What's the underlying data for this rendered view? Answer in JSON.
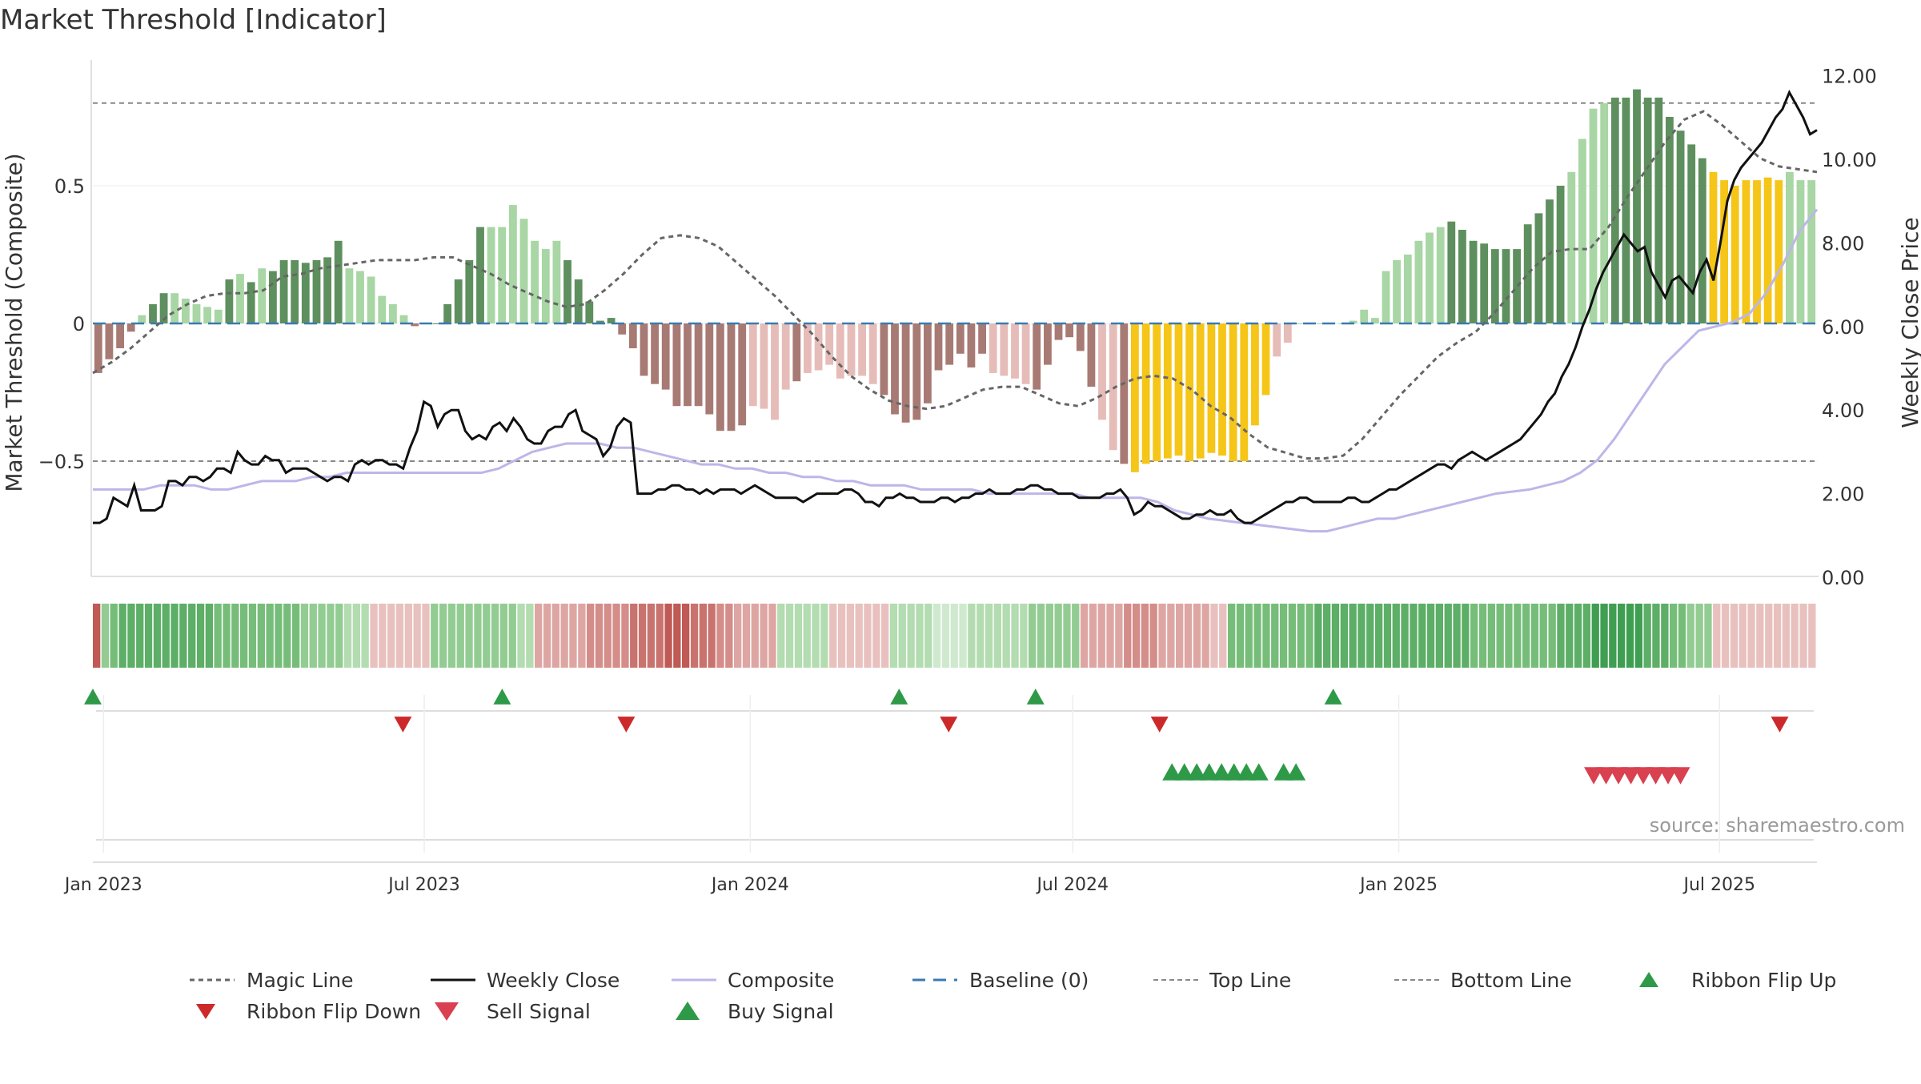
{
  "chart_data": {
    "type": "composite-indicator",
    "title": "Market Threshold [Indicator]",
    "ylabel_left": "Market Threshold (Composite)",
    "ylabel_right": "Weekly Close Price",
    "source": "source: sharemaestro.com",
    "left_ticks": [
      "0.5",
      "0",
      "−0.5"
    ],
    "right_ticks": [
      "12.00",
      "10.00",
      "8.00",
      "6.00",
      "4.00",
      "2.00",
      "0.00"
    ],
    "x_ticks": [
      "Jan 2023",
      "Jul 2023",
      "Jan 2024",
      "Jul 2024",
      "Jan 2025",
      "Jul 2025"
    ],
    "ylim_left": [
      -0.93,
      0.95
    ],
    "ylim_right": [
      0,
      12.4
    ],
    "top_line": 0.8,
    "bottom_line": -0.5,
    "legend": [
      "Magic Line",
      "Weekly Close",
      "Composite",
      "Baseline (0)",
      "Top Line",
      "Bottom Line",
      "Ribbon Flip Up",
      "Ribbon Flip Down",
      "Sell Signal",
      "Buy Signal"
    ],
    "colors": {
      "green_dark": "#5e8f5e",
      "green_light": "#a8d6a4",
      "red_dark": "#a87a74",
      "red_light": "#e6bcb9",
      "yellow": "#f5c518",
      "composite": "#bdb6e8",
      "close": "#111111",
      "magic": "#666666",
      "baseline": "#3a7ab0",
      "buy": "#2e9a48",
      "sell": "#d94050",
      "flip_down": "#cc2a2a"
    },
    "composite_bars": [
      -0.18,
      -0.13,
      -0.09,
      -0.03,
      0.03,
      0.07,
      0.11,
      0.11,
      0.09,
      0.07,
      0.06,
      0.05,
      0.16,
      0.18,
      0.15,
      0.2,
      0.19,
      0.23,
      0.23,
      0.22,
      0.23,
      0.24,
      0.3,
      0.2,
      0.19,
      0.17,
      0.1,
      0.07,
      0.03,
      -0.01,
      0.0,
      0.0,
      0.07,
      0.16,
      0.23,
      0.35,
      0.35,
      0.35,
      0.43,
      0.38,
      0.3,
      0.27,
      0.3,
      0.23,
      0.16,
      0.08,
      0.01,
      0.02,
      -0.04,
      -0.09,
      -0.19,
      -0.22,
      -0.24,
      -0.3,
      -0.3,
      -0.3,
      -0.33,
      -0.39,
      -0.39,
      -0.37,
      -0.3,
      -0.31,
      -0.35,
      -0.24,
      -0.21,
      -0.18,
      -0.17,
      -0.15,
      -0.2,
      -0.19,
      -0.19,
      -0.22,
      -0.26,
      -0.33,
      -0.36,
      -0.35,
      -0.29,
      -0.17,
      -0.15,
      -0.11,
      -0.16,
      -0.11,
      -0.18,
      -0.19,
      -0.2,
      -0.22,
      -0.24,
      -0.15,
      -0.06,
      -0.05,
      -0.1,
      -0.23,
      -0.35,
      -0.46,
      -0.51,
      -0.54,
      -0.51,
      -0.5,
      -0.49,
      -0.48,
      -0.5,
      -0.49,
      -0.47,
      -0.48,
      -0.5,
      -0.5,
      -0.37,
      -0.26,
      -0.12,
      -0.07,
      0.0,
      0.0,
      0.0,
      0.0,
      0.0,
      0.01,
      0.05,
      0.02,
      0.19,
      0.23,
      0.25,
      0.3,
      0.33,
      0.35,
      0.37,
      0.34,
      0.3,
      0.29,
      0.27,
      0.27,
      0.27,
      0.36,
      0.4,
      0.45,
      0.5,
      0.55,
      0.67,
      0.78,
      0.8,
      0.82,
      0.82,
      0.85,
      0.82,
      0.82,
      0.75,
      0.7,
      0.65,
      0.6,
      0.55,
      0.52,
      0.5,
      0.52,
      0.52,
      0.53,
      0.52,
      0.55,
      0.52,
      0.52
    ],
    "bar_kind": "ddddlddllllldldldddddddlllllldldddddllllllldddddddddddddddddlllldlllllllddddddddddllllddddddlldyyyyyyyyyyyyylllllllllllllllldddddddddddlllldddddddddyyyyyyylllllllllddddddd",
    "magic_line": [
      -0.18,
      -0.14,
      -0.09,
      -0.03,
      0.03,
      0.07,
      0.1,
      0.11,
      0.11,
      0.12,
      0.17,
      0.18,
      0.2,
      0.21,
      0.22,
      0.23,
      0.23,
      0.23,
      0.24,
      0.24,
      0.21,
      0.18,
      0.14,
      0.11,
      0.08,
      0.06,
      0.07,
      0.12,
      0.18,
      0.25,
      0.31,
      0.32,
      0.31,
      0.28,
      0.22,
      0.16,
      0.1,
      0.03,
      -0.04,
      -0.12,
      -0.19,
      -0.24,
      -0.28,
      -0.3,
      -0.31,
      -0.3,
      -0.27,
      -0.24,
      -0.23,
      -0.23,
      -0.26,
      -0.29,
      -0.3,
      -0.27,
      -0.23,
      -0.2,
      -0.19,
      -0.2,
      -0.24,
      -0.3,
      -0.34,
      -0.4,
      -0.45,
      -0.47,
      -0.49,
      -0.49,
      -0.48,
      -0.42,
      -0.34,
      -0.26,
      -0.19,
      -0.12,
      -0.07,
      -0.03,
      0.04,
      0.12,
      0.2,
      0.26,
      0.27,
      0.27,
      0.35,
      0.46,
      0.56,
      0.66,
      0.74,
      0.77,
      0.72,
      0.66,
      0.6,
      0.57,
      0.56,
      0.55
    ],
    "weekly_close": [
      1.3,
      1.3,
      1.4,
      1.9,
      1.8,
      1.7,
      2.2,
      1.6,
      1.6,
      1.6,
      1.7,
      2.3,
      2.3,
      2.2,
      2.4,
      2.4,
      2.3,
      2.4,
      2.6,
      2.6,
      2.5,
      3.0,
      2.8,
      2.7,
      2.7,
      2.9,
      2.8,
      2.8,
      2.5,
      2.6,
      2.6,
      2.6,
      2.5,
      2.4,
      2.3,
      2.4,
      2.4,
      2.3,
      2.7,
      2.8,
      2.7,
      2.8,
      2.8,
      2.7,
      2.7,
      2.6,
      3.1,
      3.5,
      4.2,
      4.1,
      3.6,
      3.9,
      4.0,
      4.0,
      3.5,
      3.3,
      3.4,
      3.3,
      3.6,
      3.7,
      3.5,
      3.8,
      3.6,
      3.3,
      3.2,
      3.2,
      3.5,
      3.6,
      3.6,
      3.9,
      4.0,
      3.5,
      3.4,
      3.3,
      2.9,
      3.1,
      3.6,
      3.8,
      3.7,
      2.0,
      2.0,
      2.0,
      2.1,
      2.1,
      2.2,
      2.2,
      2.1,
      2.1,
      2.0,
      2.1,
      2.0,
      2.1,
      2.1,
      2.1,
      2.0,
      2.1,
      2.2,
      2.1,
      2.0,
      1.9,
      1.9,
      1.9,
      1.9,
      1.8,
      1.9,
      2.0,
      2.0,
      2.0,
      2.0,
      2.1,
      2.1,
      2.0,
      1.8,
      1.8,
      1.7,
      1.9,
      1.9,
      2.0,
      1.9,
      1.9,
      1.8,
      1.8,
      1.8,
      1.9,
      1.9,
      1.8,
      1.9,
      1.9,
      2.0,
      2.0,
      2.1,
      2.0,
      2.0,
      2.0,
      2.1,
      2.1,
      2.2,
      2.2,
      2.1,
      2.1,
      2.0,
      2.0,
      2.0,
      1.9,
      1.9,
      1.9,
      1.9,
      2.0,
      2.0,
      2.1,
      1.9,
      1.5,
      1.6,
      1.8,
      1.7,
      1.7,
      1.6,
      1.5,
      1.4,
      1.4,
      1.5,
      1.5,
      1.6,
      1.5,
      1.5,
      1.6,
      1.4,
      1.3,
      1.3,
      1.4,
      1.5,
      1.6,
      1.7,
      1.8,
      1.8,
      1.9,
      1.9,
      1.8,
      1.8,
      1.8,
      1.8,
      1.8,
      1.9,
      1.9,
      1.8,
      1.8,
      1.9,
      2.0,
      2.1,
      2.1,
      2.2,
      2.3,
      2.4,
      2.5,
      2.6,
      2.7,
      2.7,
      2.6,
      2.8,
      2.9,
      3.0,
      2.9,
      2.8,
      2.9,
      3.0,
      3.1,
      3.2,
      3.3,
      3.5,
      3.7,
      3.9,
      4.2,
      4.4,
      4.8,
      5.1,
      5.5,
      6.0,
      6.4,
      6.9,
      7.3,
      7.6,
      7.9,
      8.2,
      8.0,
      7.8,
      7.9,
      7.3,
      7.0,
      6.7,
      7.1,
      7.2,
      7.0,
      6.8,
      7.3,
      7.6,
      7.1,
      8.0,
      9.0,
      9.5,
      9.8,
      10.0,
      10.2,
      10.4,
      10.7,
      11.0,
      11.2,
      11.6,
      11.3,
      11.0,
      10.6,
      10.7
    ],
    "composite_line": [
      2.1,
      2.1,
      2.1,
      2.1,
      2.2,
      2.2,
      2.2,
      2.1,
      2.1,
      2.2,
      2.3,
      2.3,
      2.3,
      2.4,
      2.4,
      2.5,
      2.5,
      2.5,
      2.5,
      2.5,
      2.5,
      2.5,
      2.5,
      2.5,
      2.6,
      2.8,
      3.0,
      3.1,
      3.2,
      3.2,
      3.2,
      3.1,
      3.1,
      3.0,
      2.9,
      2.8,
      2.7,
      2.7,
      2.6,
      2.6,
      2.5,
      2.5,
      2.4,
      2.4,
      2.3,
      2.3,
      2.2,
      2.2,
      2.2,
      2.1,
      2.1,
      2.1,
      2.1,
      2.0,
      2.0,
      2.0,
      2.0,
      2.0,
      2.0,
      1.9,
      1.9,
      1.9,
      1.9,
      1.8,
      1.6,
      1.5,
      1.4,
      1.35,
      1.3,
      1.25,
      1.2,
      1.15,
      1.1,
      1.1,
      1.2,
      1.3,
      1.4,
      1.4,
      1.5,
      1.6,
      1.7,
      1.8,
      1.9,
      2.0,
      2.05,
      2.1,
      2.2,
      2.3,
      2.5,
      2.8,
      3.3,
      3.9,
      4.5,
      5.1,
      5.5,
      5.9,
      6.0,
      6.1,
      6.3,
      6.8,
      7.5,
      8.3,
      8.8
    ],
    "ribbon": "l5,g2,g3,g4,g4,g4,g4,g4,g4,g4,g4,g4,g4,g4,g3,g3,g3,g3,g3,g3,g3,g3,g3,g3,g2,g2,g2,g2,g2,g1,g1,g1,r1,r1,r1,r1,r1,r1,r1,g2,g2,g2,g2,g2,g2,g2,g2,g2,g2,g1,g1,r2,r2,r2,r2,r2,r2,r3,r3,r3,r3,r3,r4,r4,r4,r4,r5,r5,r5,r4,r4,r4,r3,r3,r2,r2,r2,r2,r2,g1,g1,g1,g1,g1,g1,r1,r1,r1,r1,r1,r1,r1,g1,g1,g1,g1,g1,g0,g0,g0,g0,g1,g1,g1,g1,g1,g1,g1,g2,g2,g2,g2,g2,g2,r2,r2,r2,r2,r2,r3,r3,r3,r3,r2,r2,r2,r2,r2,r2,r1,r1,g3,g3,g3,g3,g3,g3,g3,g3,g3,g3,g4,g4,g4,g4,g4,g4,g4,g4,g4,g4,g4,g4,g4,g4,g4,g4,g4,g4,g3,g3,g3,g3,g3,g3,g3,g3,g3,g3,g4,g4,g4,g4,g5,g5,g5,g5,g5,g5,g4,g4,g4,g3,g3,g2,g2,g2,r1,r1,r1,r1,r1,r1,r1,r1,r1,r1,r1,r1",
    "flip_up_dates": [
      "2022-12-26",
      "2023-08-14",
      "2024-03-25",
      "2024-06-10",
      "2024-11-25"
    ],
    "flip_down_dates": [
      "2023-06-19",
      "2023-10-23",
      "2024-04-22",
      "2024-08-19",
      "2025-08-04"
    ],
    "buy_signal_dates": [
      "2024-08-26",
      "2024-09-02",
      "2024-09-09",
      "2024-09-16",
      "2024-09-23",
      "2024-09-30",
      "2024-10-07",
      "2024-10-14",
      "2024-10-28",
      "2024-11-04"
    ],
    "sell_signal_dates": [
      "2025-04-21",
      "2025-04-28",
      "2025-05-05",
      "2025-05-12",
      "2025-05-19",
      "2025-05-26",
      "2025-06-02",
      "2025-06-09"
    ]
  }
}
